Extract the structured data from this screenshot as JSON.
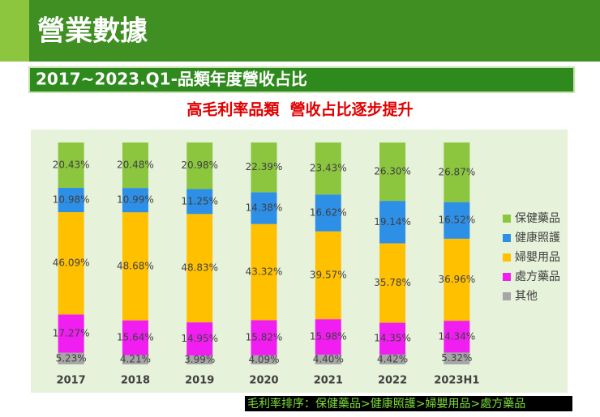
{
  "header": {
    "title": "營業數據",
    "subtitle": "2017~2023.Q1-品類年度營收占比"
  },
  "chart_data": {
    "type": "stacked_bar",
    "title": "高毛利率品類  營收占比逐步提升",
    "categories": [
      "2017",
      "2018",
      "2019",
      "2020",
      "2021",
      "2022",
      "2023H1"
    ],
    "ylim": [
      0,
      100
    ],
    "series": [
      {
        "name": "其他",
        "color": "#a6a6a6",
        "values": [
          5.23,
          4.21,
          3.99,
          4.09,
          4.4,
          4.42,
          5.32
        ],
        "value_labels": [
          "5.23%",
          "4.21%",
          "3.99%",
          "4.09%",
          "4.40%",
          "4.42%",
          "5.32%"
        ]
      },
      {
        "name": "處方藥品",
        "color": "#f01ef0",
        "values": [
          17.27,
          15.64,
          14.95,
          15.82,
          15.98,
          14.35,
          14.34
        ],
        "value_labels": [
          "17.27%",
          "15.64%",
          "14.95%",
          "15.82%",
          "15.98%",
          "14.35%",
          "14.34%"
        ]
      },
      {
        "name": "婦嬰用品",
        "color": "#ffc000",
        "values": [
          46.09,
          48.68,
          48.83,
          43.32,
          39.57,
          35.78,
          36.96
        ],
        "value_labels": [
          "46.09%",
          "48.68%",
          "48.83%",
          "43.32%",
          "39.57%",
          "35.78%",
          "36.96%"
        ]
      },
      {
        "name": "健康照護",
        "color": "#2e8fe6",
        "values": [
          10.98,
          10.99,
          11.25,
          14.38,
          16.62,
          19.14,
          16.52
        ],
        "value_labels": [
          "10.98%",
          "10.99%",
          "11.25%",
          "14.38%",
          "16.62%",
          "19.14%",
          "16.52%"
        ]
      },
      {
        "name": "保健藥品",
        "color": "#8cc63f",
        "values": [
          20.43,
          20.48,
          20.98,
          22.39,
          23.43,
          26.3,
          26.87
        ],
        "value_labels": [
          "20.43%",
          "20.48%",
          "20.98%",
          "22.39%",
          "23.43%",
          "26.30%",
          "26.87%"
        ]
      }
    ],
    "legend": "right"
  },
  "footnote": "毛利率排序：保健藥品>健康照護>婦嬰用品>處方藥品"
}
